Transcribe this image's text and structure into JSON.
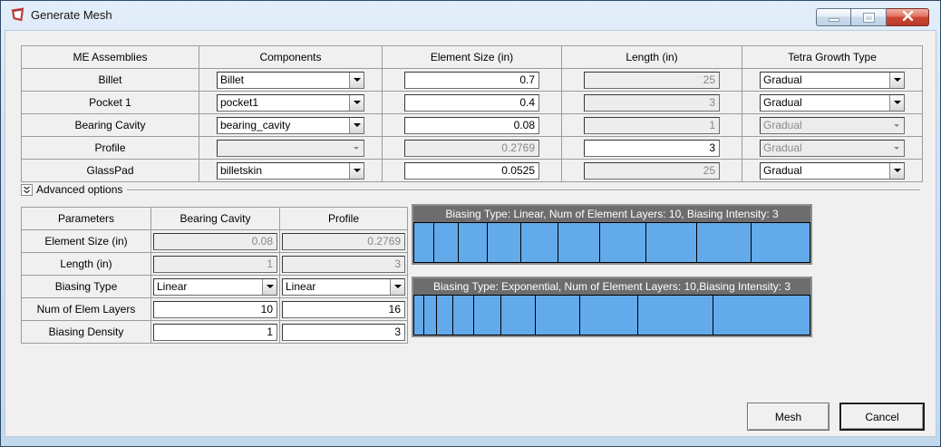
{
  "window": {
    "title": "Generate Mesh"
  },
  "main_table": {
    "headers": [
      "ME Assemblies",
      "Components",
      "Element Size (in)",
      "Length (in)",
      "Tetra Growth Type"
    ],
    "rows": [
      {
        "assembly": "Billet",
        "component": "Billet",
        "element_size": "0.7",
        "length": "25",
        "tetra": "Gradual"
      },
      {
        "assembly": "Pocket 1",
        "component": "pocket1",
        "element_size": "0.4",
        "length": "3",
        "tetra": "Gradual"
      },
      {
        "assembly": "Bearing Cavity",
        "component": "bearing_cavity",
        "element_size": "0.08",
        "length": "1",
        "tetra": "Gradual"
      },
      {
        "assembly": "Profile",
        "component": "",
        "element_size": "0.2769",
        "length": "3",
        "tetra": "Gradual"
      },
      {
        "assembly": "GlassPad",
        "component": "billetskin",
        "element_size": "0.0525",
        "length": "25",
        "tetra": "Gradual"
      }
    ]
  },
  "advanced": {
    "label": "Advanced options",
    "params_table": {
      "headers": [
        "Parameters",
        "Bearing Cavity",
        "Profile"
      ],
      "rows": [
        {
          "label": "Element Size (in)",
          "bearing": "0.08",
          "profile": "0.2769"
        },
        {
          "label": "Length (in)",
          "bearing": "1",
          "profile": "3"
        },
        {
          "label": "Biasing Type",
          "bearing": "Linear",
          "profile": "Linear"
        },
        {
          "label": "Num of Elem Layers",
          "bearing": "10",
          "profile": "16"
        },
        {
          "label": "Biasing Density",
          "bearing": "1",
          "profile": "3"
        }
      ]
    },
    "previews": [
      {
        "caption": "Biasing Type: Linear, Num of Element Layers: 10, Biasing Intensity: 3",
        "segments": [
          1,
          1.22,
          1.44,
          1.67,
          1.89,
          2.11,
          2.33,
          2.56,
          2.78,
          3
        ]
      },
      {
        "caption": "Biasing Type: Exponential, Num of Element Layers: 10,Biasing Intensity: 3",
        "segments": [
          1,
          1.3,
          1.69,
          2.2,
          2.86,
          3.71,
          4.83,
          6.27,
          8.16,
          10.6
        ]
      }
    ]
  },
  "footer": {
    "mesh_label": "Mesh",
    "cancel_label": "Cancel"
  },
  "colors": {
    "segment_blue": "#63aaea",
    "caption_bg": "#6d6d6d",
    "close_red": "#cc4632"
  }
}
